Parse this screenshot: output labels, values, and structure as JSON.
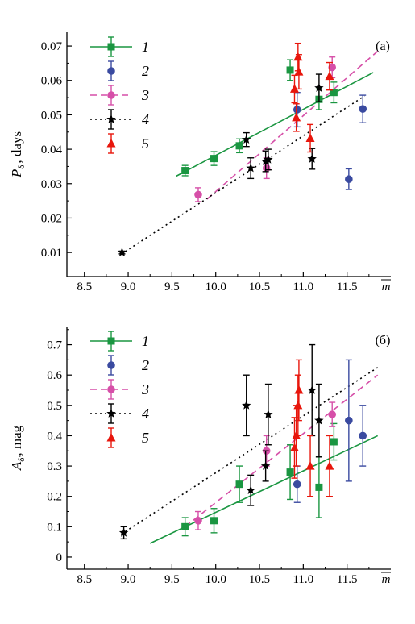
{
  "chart_data": [
    {
      "type": "scatter",
      "panel_label": "(a)",
      "ylabel_main": "P",
      "ylabel_sub": "δ'",
      "ylabel_unit": ", days",
      "xlabel": "m̄",
      "xlim": [
        8.3,
        12.0
      ],
      "ylim": [
        0.003,
        0.074
      ],
      "xticks": [
        8.5,
        9.0,
        9.5,
        10.0,
        10.5,
        11.0,
        11.5
      ],
      "xtick_labels": [
        "8.5",
        "9.0",
        "9.5",
        "10.0",
        "10.5",
        "11.0",
        "11.5"
      ],
      "yticks": [
        0.01,
        0.02,
        0.03,
        0.04,
        0.05,
        0.06,
        0.07
      ],
      "ytick_labels": [
        "0.01",
        "0.02",
        "0.03",
        "0.04",
        "0.05",
        "0.06",
        "0.07"
      ],
      "series": [
        {
          "name": "1",
          "color": "#1a9641",
          "marker": "square",
          "line": "solid",
          "fit": [
            [
              9.55,
              0.0322
            ],
            [
              11.8,
              0.0623
            ]
          ],
          "points": [
            [
              9.65,
              0.0338,
              0.0015
            ],
            [
              9.98,
              0.0373,
              0.002
            ],
            [
              10.27,
              0.041,
              0.002
            ],
            [
              10.85,
              0.063,
              0.003
            ],
            [
              11.18,
              0.0545,
              0.003
            ],
            [
              11.35,
              0.0565,
              0.003
            ]
          ]
        },
        {
          "name": "2",
          "color": "#3a4aa0",
          "marker": "circle",
          "line": "none",
          "points": [
            [
              10.93,
              0.0515,
              0.005
            ],
            [
              11.52,
              0.0313,
              0.003
            ],
            [
              11.68,
              0.0517,
              0.004
            ]
          ]
        },
        {
          "name": "3",
          "color": "#d64fa8",
          "marker": "circle",
          "line": "dashed",
          "fit": [
            [
              9.9,
              0.0255
            ],
            [
              11.85,
              0.0685
            ]
          ],
          "points": [
            [
              9.8,
              0.0268,
              0.002
            ],
            [
              10.58,
              0.0345,
              0.003
            ],
            [
              11.33,
              0.0638,
              0.003
            ]
          ]
        },
        {
          "name": "4",
          "color": "#000000",
          "marker": "star",
          "line": "dotted",
          "fit": [
            [
              8.92,
              0.0095
            ],
            [
              11.7,
              0.0555
            ]
          ],
          "points": [
            [
              8.93,
              0.01,
              0.0004
            ],
            [
              10.35,
              0.0428,
              0.002
            ],
            [
              10.4,
              0.0345,
              0.003
            ],
            [
              10.57,
              0.0365,
              0.003
            ],
            [
              10.6,
              0.037,
              0.003
            ],
            [
              11.1,
              0.0372,
              0.003
            ],
            [
              11.18,
              0.0578,
              0.004
            ]
          ]
        },
        {
          "name": "5",
          "color": "#e8160c",
          "marker": "triangle",
          "line": "none",
          "points": [
            [
              10.9,
              0.0575,
              0.004
            ],
            [
              10.92,
              0.0492,
              0.004
            ],
            [
              10.94,
              0.0668,
              0.004
            ],
            [
              10.95,
              0.0625,
              0.005
            ],
            [
              11.08,
              0.0432,
              0.004
            ],
            [
              11.3,
              0.0612,
              0.004
            ]
          ]
        }
      ]
    },
    {
      "type": "scatter",
      "panel_label": "(б)",
      "ylabel_main": "A",
      "ylabel_sub": "δ'",
      "ylabel_unit": ", mag",
      "xlabel": "m̄",
      "xlim": [
        8.3,
        12.0
      ],
      "ylim": [
        -0.04,
        0.76
      ],
      "xticks": [
        8.5,
        9.0,
        9.5,
        10.0,
        10.5,
        11.0,
        11.5
      ],
      "xtick_labels": [
        "8.5",
        "9.0",
        "9.5",
        "10.0",
        "10.5",
        "11.0",
        "11.5"
      ],
      "yticks": [
        0,
        0.1,
        0.2,
        0.3,
        0.4,
        0.5,
        0.6,
        0.7
      ],
      "ytick_labels": [
        "0",
        "0.1",
        "0.2",
        "0.3",
        "0.4",
        "0.5",
        "0.6",
        "0.7"
      ],
      "series": [
        {
          "name": "1",
          "color": "#1a9641",
          "marker": "square",
          "line": "solid",
          "fit": [
            [
              9.25,
              0.045
            ],
            [
              11.85,
              0.4
            ]
          ],
          "points": [
            [
              9.65,
              0.1,
              0.03
            ],
            [
              9.98,
              0.12,
              0.04
            ],
            [
              10.27,
              0.24,
              0.06
            ],
            [
              10.85,
              0.28,
              0.09
            ],
            [
              11.18,
              0.23,
              0.1
            ],
            [
              11.35,
              0.38,
              0.06
            ]
          ]
        },
        {
          "name": "2",
          "color": "#3a4aa0",
          "marker": "circle",
          "line": "none",
          "points": [
            [
              10.93,
              0.24,
              0.06
            ],
            [
              11.52,
              0.45,
              0.2
            ],
            [
              11.68,
              0.4,
              0.1
            ]
          ]
        },
        {
          "name": "3",
          "color": "#d64fa8",
          "marker": "circle",
          "line": "dashed",
          "fit": [
            [
              9.65,
              0.1
            ],
            [
              11.85,
              0.6
            ]
          ],
          "points": [
            [
              9.8,
              0.12,
              0.03
            ],
            [
              10.58,
              0.35,
              0.05
            ],
            [
              11.33,
              0.47,
              0.04
            ]
          ]
        },
        {
          "name": "4",
          "color": "#000000",
          "marker": "star",
          "line": "dotted",
          "fit": [
            [
              8.92,
              0.075
            ],
            [
              11.85,
              0.625
            ]
          ],
          "points": [
            [
              8.95,
              0.08,
              0.02
            ],
            [
              10.35,
              0.5,
              0.1
            ],
            [
              10.4,
              0.22,
              0.05
            ],
            [
              10.57,
              0.3,
              0.05
            ],
            [
              10.6,
              0.47,
              0.1
            ],
            [
              11.1,
              0.55,
              0.15
            ],
            [
              11.18,
              0.45,
              0.12
            ]
          ]
        },
        {
          "name": "5",
          "color": "#e8160c",
          "marker": "triangle",
          "line": "none",
          "points": [
            [
              10.9,
              0.36,
              0.1
            ],
            [
              10.92,
              0.4,
              0.1
            ],
            [
              10.94,
              0.5,
              0.1
            ],
            [
              10.95,
              0.55,
              0.1
            ],
            [
              11.08,
              0.3,
              0.1
            ],
            [
              11.3,
              0.3,
              0.1
            ]
          ]
        }
      ]
    }
  ]
}
